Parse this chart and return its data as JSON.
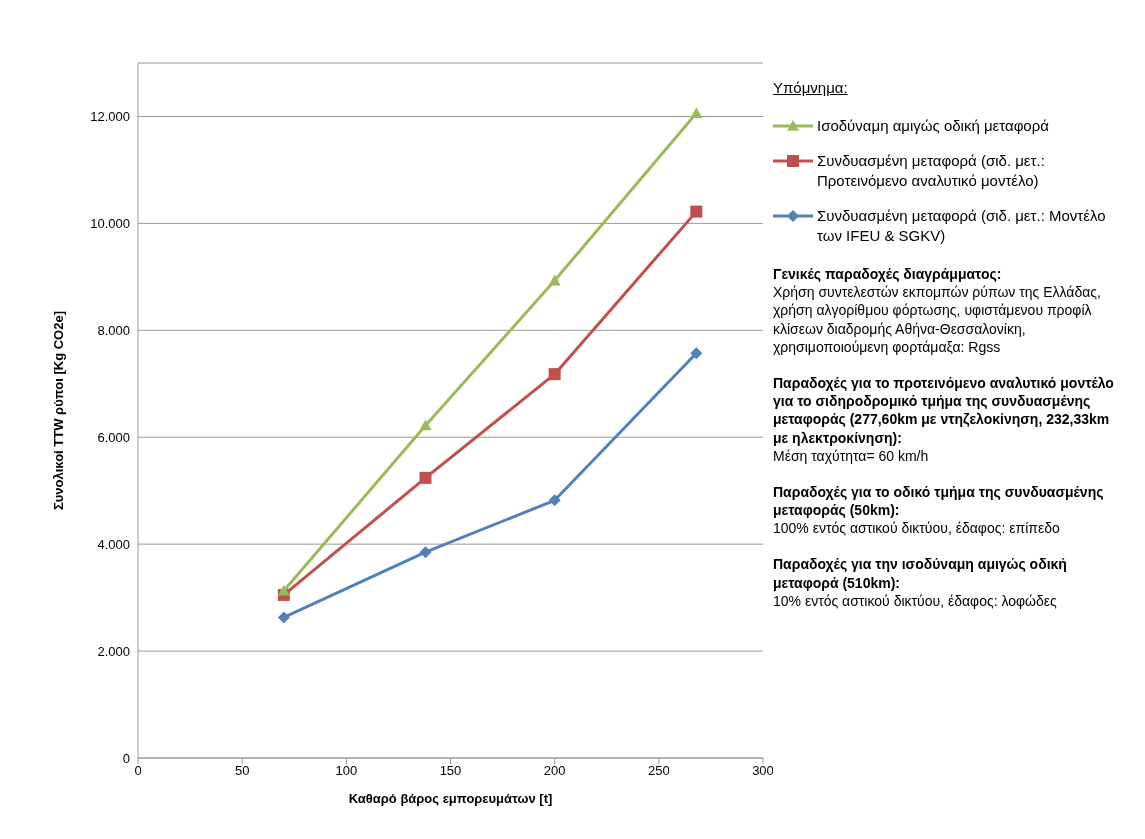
{
  "chart_data": {
    "type": "line",
    "xlabel": "Καθαρό βάρος εμπορευμάτων  [t]",
    "ylabel": "Συνολικοί  TTW ρύποι [Kg CO2e]",
    "legend_title": "Υπόμνημα:",
    "legend": "right",
    "grid": "y",
    "line_style": "solid",
    "x": [
      70,
      138,
      200,
      268
    ],
    "xlim": [
      0,
      300
    ],
    "xticks": [
      0,
      50,
      100,
      150,
      200,
      250,
      300
    ],
    "ylim": [
      0,
      13000
    ],
    "yticks": [
      0,
      {
        "value": 2000,
        "label": "2.000"
      },
      {
        "value": 4000,
        "label": "4.000"
      },
      {
        "value": 6000,
        "label": "6.000"
      },
      {
        "value": 8000,
        "label": "8.000"
      },
      {
        "value": 10000,
        "label": "10.000"
      },
      {
        "value": 12000,
        "label": "12.000"
      }
    ],
    "series": [
      {
        "name": "Ισοδύναμη αμιγώς οδική μεταφορά",
        "color": "#9bbb59",
        "marker": "triangle",
        "values": [
          3130,
          6220,
          8930,
          12060
        ]
      },
      {
        "name": "Συνδυασμένη μεταφορά (σιδ. μετ.: Προτεινόμενο αναλυτικό μοντέλο)",
        "color": "#c0504d",
        "marker": "square",
        "values": [
          3050,
          5240,
          7180,
          10220
        ]
      },
      {
        "name": "Συνδυασμένη μεταφορά (σιδ. μετ.: Μοντέλο των IFEU & SGKV)",
        "color": "#4f81bd",
        "marker": "diamond",
        "values": [
          2630,
          3850,
          4820,
          7570
        ]
      }
    ],
    "annotations": [
      "Γενικές παραδοχές διαγράμματος:",
      "Χρήση συντελεστών εκπομπών ρύπων της Ελλάδας, χρήση αλγορίθμου φόρτωσης, υφιστάμενου προφίλ κλίσεων διαδρομής Αθήνα-Θεσσαλονίκη, χρησιμοποιούμενη φορτάμαξα: Rgss",
      "Παραδοχές για το προτεινόμενο αναλυτικό μοντέλο για το σιδηροδρομικό τμήμα της συνδυασμένης μεταφοράς (277,60km με ντηζελοκίνηση, 232,33km  με ηλεκτροκίνηση):",
      "Μέση ταχύτητα= 60 km/h",
      "Παραδοχές για το οδικό τμήμα της συνδυασμένης μεταφοράς (50km):",
      "100% εντός αστικού δικτύου, έδαφος: επίπεδο",
      "Παραδοχές για την ισοδύναμη αμιγώς οδική μεταφορά (510km):",
      "10% εντός αστικού δικτύου, έδαφος: λοφώδες"
    ]
  }
}
